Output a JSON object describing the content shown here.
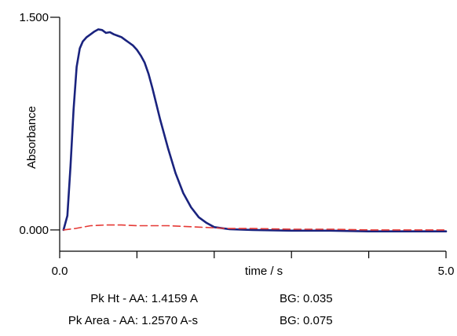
{
  "chart_data": {
    "type": "line",
    "ylabel": "Absorbance",
    "xlabel": "time / s",
    "xlim": [
      0.0,
      5.0
    ],
    "ylim": [
      -0.15,
      1.5
    ],
    "x_tick_labels": [
      {
        "value": 0.0,
        "label": "0.0"
      },
      {
        "value": 5.0,
        "label": "5.0"
      }
    ],
    "x_minor_ticks": [
      0.0,
      1.0,
      2.0,
      3.0,
      4.0,
      5.0
    ],
    "y_tick_labels": [
      {
        "value": 1.5,
        "label": "1.500"
      },
      {
        "value": 0.0,
        "label": "0.000"
      }
    ],
    "grid": false,
    "series": [
      {
        "color": "#1a237e",
        "style": "solid",
        "x": [
          0.05,
          0.1,
          0.14,
          0.18,
          0.22,
          0.26,
          0.3,
          0.35,
          0.4,
          0.45,
          0.5,
          0.55,
          0.6,
          0.65,
          0.7,
          0.75,
          0.8,
          0.85,
          0.9,
          0.95,
          1.0,
          1.05,
          1.1,
          1.15,
          1.2,
          1.3,
          1.4,
          1.5,
          1.6,
          1.7,
          1.8,
          1.9,
          2.0,
          2.2,
          2.5,
          3.0,
          3.5,
          4.0,
          4.5,
          5.0
        ],
        "y": [
          0.0,
          0.1,
          0.45,
          0.85,
          1.15,
          1.28,
          1.33,
          1.36,
          1.38,
          1.4,
          1.415,
          1.41,
          1.39,
          1.395,
          1.38,
          1.37,
          1.36,
          1.34,
          1.32,
          1.3,
          1.27,
          1.23,
          1.18,
          1.1,
          1.0,
          0.78,
          0.58,
          0.4,
          0.26,
          0.16,
          0.09,
          0.05,
          0.02,
          0.005,
          0.0,
          -0.005,
          -0.005,
          -0.01,
          -0.01,
          -0.01
        ]
      },
      {
        "color": "#e53935",
        "style": "dashed",
        "x": [
          0.05,
          0.2,
          0.4,
          0.6,
          0.8,
          1.0,
          1.2,
          1.4,
          1.6,
          1.8,
          2.0,
          2.2,
          2.5,
          3.0,
          3.5,
          4.0,
          4.5,
          5.0
        ],
        "y": [
          0.0,
          0.01,
          0.03,
          0.035,
          0.035,
          0.03,
          0.03,
          0.03,
          0.025,
          0.02,
          0.015,
          0.01,
          0.01,
          0.005,
          0.005,
          0.0,
          0.0,
          0.0
        ]
      }
    ]
  },
  "stats": {
    "rows": [
      {
        "label": "Pk Ht - AA: 1.4159 A",
        "bg": "BG: 0.035"
      },
      {
        "label": "Pk Area - AA: 1.2570 A-s",
        "bg": "BG: 0.075"
      }
    ]
  }
}
